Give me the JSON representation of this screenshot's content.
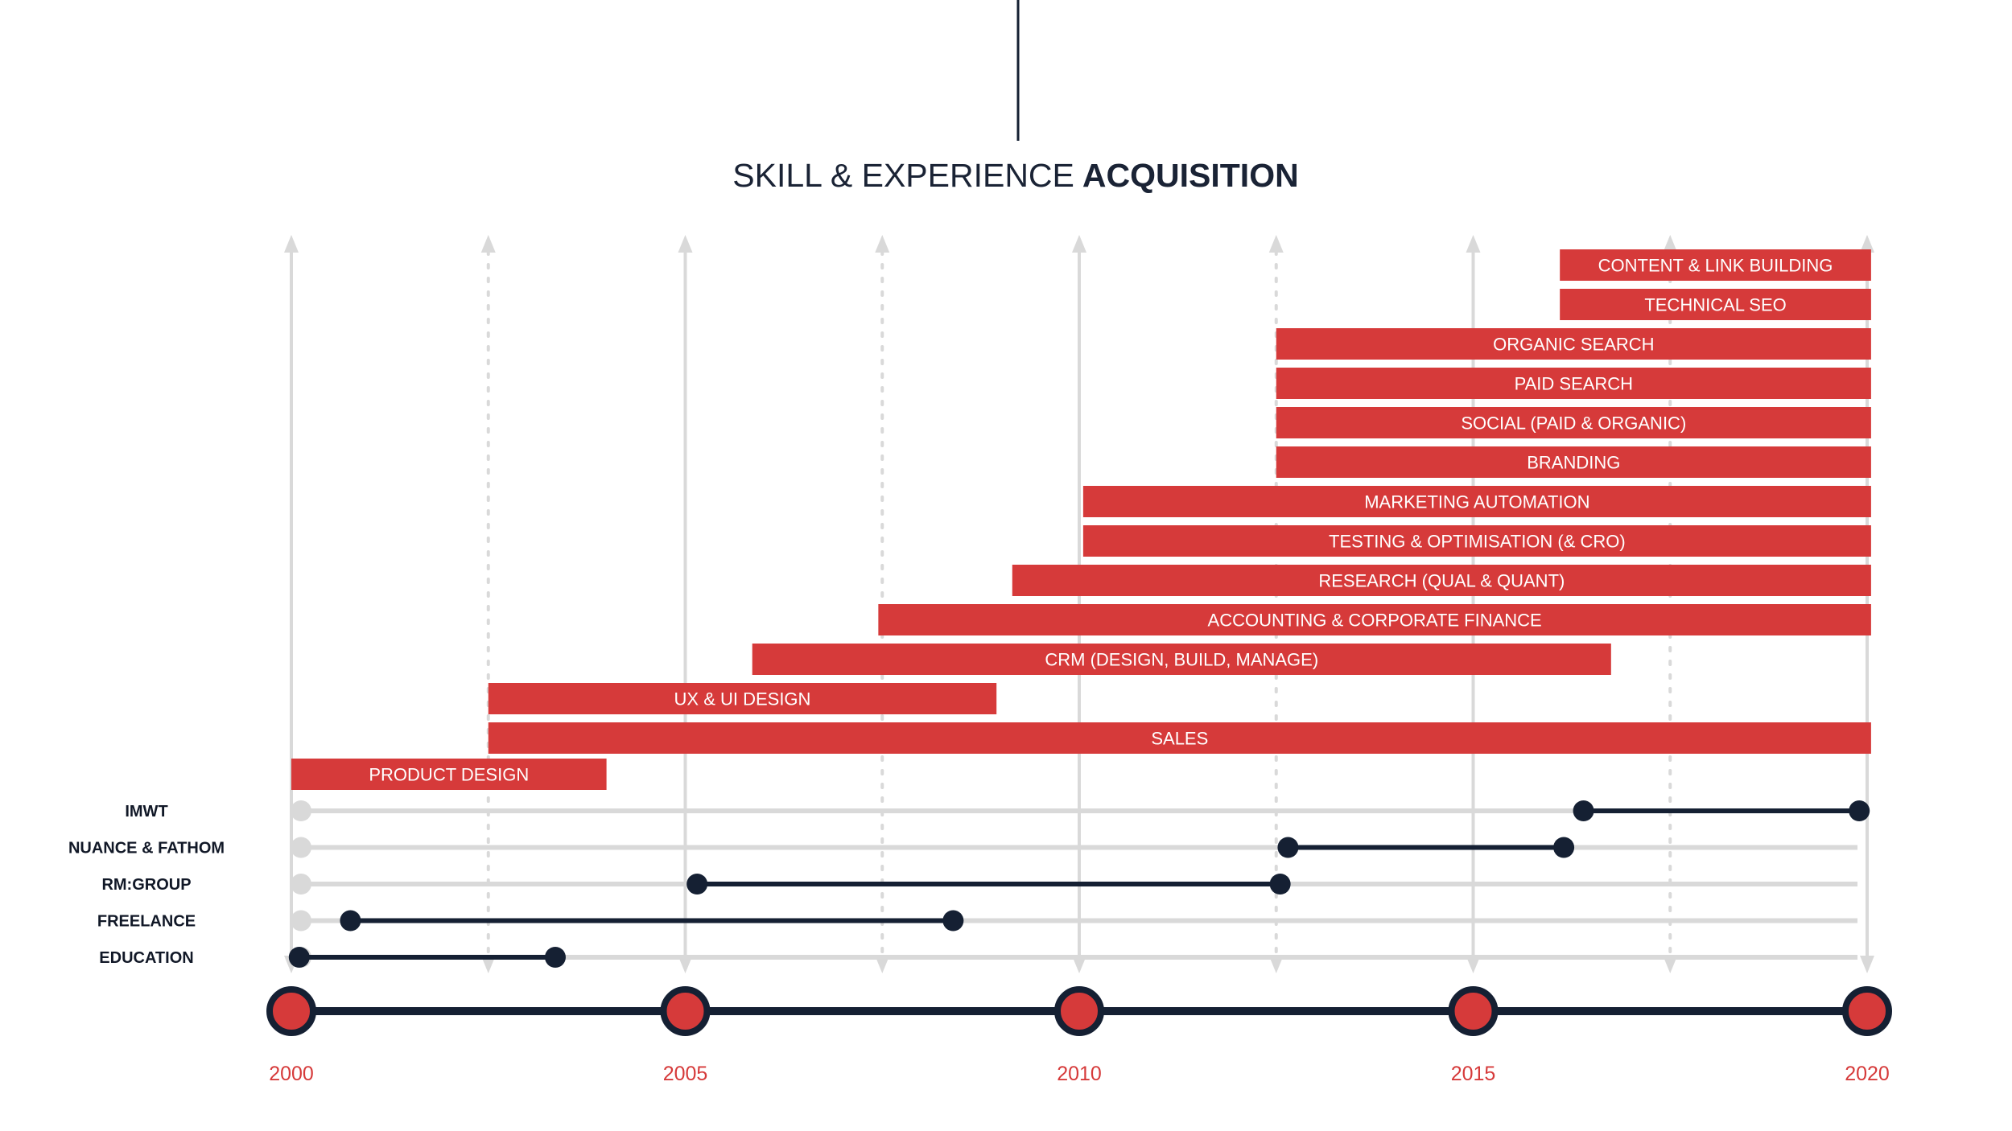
{
  "title": {
    "prefix": "SKILL & EXPERIENCE",
    "emphasis": "ACQUISITION"
  },
  "colors": {
    "accent": "#d63a3a",
    "navy": "#152033",
    "grey": "#d9d9d9",
    "text": "#1a2335"
  },
  "chart_data": {
    "type": "timeline",
    "xlim": [
      2000,
      2020
    ],
    "major_ticks": [
      2000,
      2005,
      2010,
      2015,
      2020
    ],
    "minor_ticks": [
      2002.5,
      2007.5,
      2012.5,
      2017.5
    ],
    "skills": [
      {
        "label": "CONTENT & LINK BUILDING",
        "start": 2016.1,
        "end": 2020.05
      },
      {
        "label": "TECHNICAL SEO",
        "start": 2016.1,
        "end": 2020.05
      },
      {
        "label": "ORGANIC SEARCH",
        "start": 2012.5,
        "end": 2020.05
      },
      {
        "label": "PAID SEARCH",
        "start": 2012.5,
        "end": 2020.05
      },
      {
        "label": "SOCIAL (PAID & ORGANIC)",
        "start": 2012.5,
        "end": 2020.05
      },
      {
        "label": "BRANDING",
        "start": 2012.5,
        "end": 2020.05
      },
      {
        "label": "MARKETING AUTOMATION",
        "start": 2010.05,
        "end": 2020.05
      },
      {
        "label": "TESTING & OPTIMISATION (& CRO)",
        "start": 2010.05,
        "end": 2020.05
      },
      {
        "label": "RESEARCH (QUAL & QUANT)",
        "start": 2009.15,
        "end": 2020.05
      },
      {
        "label": "ACCOUNTING & CORPORATE FINANCE",
        "start": 2007.45,
        "end": 2020.05
      },
      {
        "label": "CRM (DESIGN, BUILD, MANAGE)",
        "start": 2005.85,
        "end": 2016.75
      },
      {
        "label": "UX & UI DESIGN",
        "start": 2002.5,
        "end": 2008.95
      },
      {
        "label": "SALES",
        "start": 2002.5,
        "end": 2020.05
      },
      {
        "label": "PRODUCT DESIGN",
        "start": 2000.0,
        "end": 2004.0
      }
    ],
    "experience": [
      {
        "label": "IMWT",
        "start": 2016.4,
        "end": 2019.9
      },
      {
        "label": "NUANCE & FATHOM",
        "start": 2012.65,
        "end": 2016.15
      },
      {
        "label": "RM:GROUP",
        "start": 2005.15,
        "end": 2012.55
      },
      {
        "label": "FREELANCE",
        "start": 2000.75,
        "end": 2008.4
      },
      {
        "label": "EDUCATION",
        "start": 2000.1,
        "end": 2003.35
      }
    ]
  }
}
